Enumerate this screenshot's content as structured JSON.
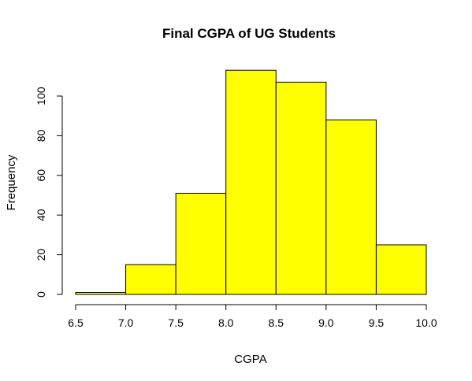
{
  "chart_data": {
    "type": "bar",
    "title": "Final CGPA of UG Students",
    "xlabel": "CGPA",
    "ylabel": "Frequency",
    "bins": [
      {
        "start": 6.5,
        "end": 7.0,
        "count": 1
      },
      {
        "start": 7.0,
        "end": 7.5,
        "count": 15
      },
      {
        "start": 7.5,
        "end": 8.0,
        "count": 51
      },
      {
        "start": 8.0,
        "end": 8.5,
        "count": 113
      },
      {
        "start": 8.5,
        "end": 9.0,
        "count": 107
      },
      {
        "start": 9.0,
        "end": 9.5,
        "count": 88
      },
      {
        "start": 9.5,
        "end": 10.0,
        "count": 25
      }
    ],
    "xlim": [
      6.5,
      10.0
    ],
    "ylim": [
      0,
      113
    ],
    "x_ticks": [
      "6.5",
      "7.0",
      "7.5",
      "8.0",
      "8.5",
      "9.0",
      "9.5",
      "10.0"
    ],
    "y_ticks": [
      "0",
      "20",
      "40",
      "60",
      "80",
      "100"
    ],
    "bar_color": "#ffff00",
    "grid": false,
    "legend": "none"
  }
}
